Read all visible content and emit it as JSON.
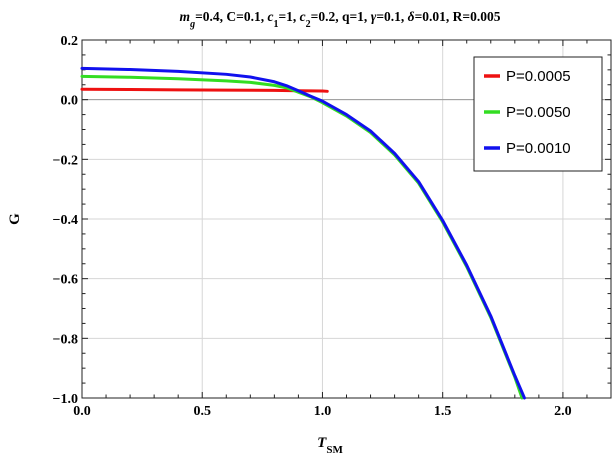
{
  "chart_data": {
    "type": "line",
    "title_parts": [
      {
        "t": "m",
        "i": true
      },
      {
        "t": "g",
        "i": true,
        "sub": true
      },
      {
        "t": "=0.4, C=0.1, "
      },
      {
        "t": "c",
        "i": true
      },
      {
        "t": "1",
        "sub": true
      },
      {
        "t": "=1, "
      },
      {
        "t": "c",
        "i": true
      },
      {
        "t": "2",
        "sub": true
      },
      {
        "t": "=0.2, q=1, "
      },
      {
        "t": "γ",
        "i": true
      },
      {
        "t": "=0.1, "
      },
      {
        "t": "δ",
        "i": true
      },
      {
        "t": "=0.01, R=0.005"
      }
    ],
    "xlabel": {
      "main": "T",
      "sub": "SM"
    },
    "ylabel": "G",
    "xlim": [
      0.0,
      2.2
    ],
    "ylim": [
      -1.0,
      0.2
    ],
    "xticks": [
      0.0,
      0.5,
      1.0,
      1.5,
      2.0
    ],
    "xtick_labels": [
      "0.0",
      "0.5",
      "1.0",
      "1.5",
      "2.0"
    ],
    "yticks": [
      0.2,
      0.0,
      -0.2,
      -0.4,
      -0.6,
      -0.8,
      -1.0
    ],
    "ytick_labels": [
      "0.2",
      "0.0",
      "−0.2",
      "−0.4",
      "−0.6",
      "−0.8",
      "−1.0"
    ],
    "grid": true,
    "legend_position": "top-right",
    "series": [
      {
        "name": "P=0.0005",
        "color": "#ee1111",
        "x": [
          0.0,
          0.2,
          0.4,
          0.6,
          0.8,
          0.9,
          1.0,
          1.02
        ],
        "y": [
          0.035,
          0.034,
          0.033,
          0.032,
          0.031,
          0.03,
          0.029,
          0.028
        ]
      },
      {
        "name": "P=0.0050",
        "color": "#33dd22",
        "x": [
          0.0,
          0.2,
          0.4,
          0.6,
          0.7,
          0.8,
          0.85,
          0.9,
          0.95,
          1.0,
          1.1,
          1.2,
          1.3,
          1.4,
          1.5,
          1.6,
          1.7,
          1.8,
          1.83
        ],
        "y": [
          0.078,
          0.075,
          0.07,
          0.063,
          0.058,
          0.048,
          0.04,
          0.025,
          0.01,
          -0.01,
          -0.055,
          -0.11,
          -0.185,
          -0.28,
          -0.41,
          -0.56,
          -0.73,
          -0.93,
          -1.0
        ]
      },
      {
        "name": "P=0.0010",
        "color": "#1111ee",
        "x": [
          0.0,
          0.2,
          0.4,
          0.6,
          0.7,
          0.8,
          0.85,
          0.9,
          0.95,
          1.0,
          1.1,
          1.2,
          1.3,
          1.4,
          1.5,
          1.6,
          1.7,
          1.8,
          1.84
        ],
        "y": [
          0.105,
          0.101,
          0.095,
          0.085,
          0.076,
          0.06,
          0.047,
          0.03,
          0.012,
          -0.005,
          -0.05,
          -0.105,
          -0.18,
          -0.275,
          -0.405,
          -0.555,
          -0.725,
          -0.925,
          -1.0
        ]
      }
    ]
  }
}
